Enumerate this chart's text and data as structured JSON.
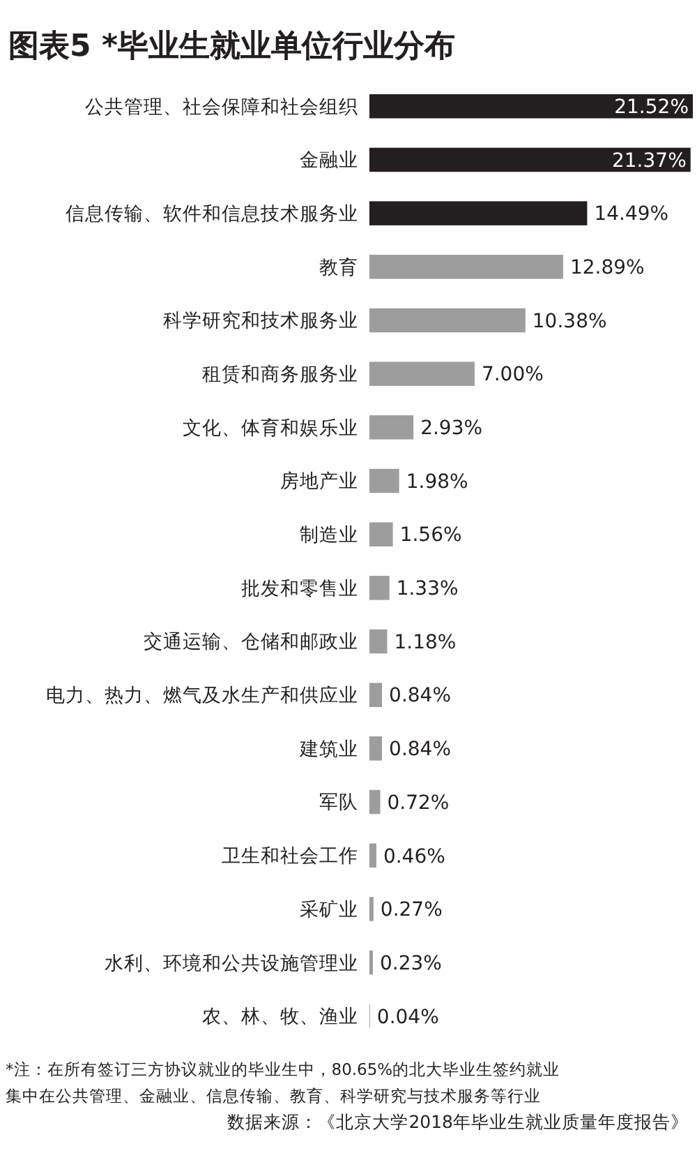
{
  "chart_data": {
    "type": "bar",
    "orientation": "horizontal",
    "title": "图表5 *毕业生就业单位行业分布",
    "categories": [
      "公共管理、社会保障和社会组织",
      "金融业",
      "信息传输、软件和信息技术服务业",
      "教育",
      "科学研究和技术服务业",
      "租赁和商务服务业",
      "文化、体育和娱乐业",
      "房地产业",
      "制造业",
      "批发和零售业",
      "交通运输、仓储和邮政业",
      "电力、热力、燃气及水生产和供应业",
      "建筑业",
      "军队",
      "卫生和社会工作",
      "采矿业",
      "水利、环境和公共设施管理业",
      "农、林、牧、渔业"
    ],
    "values": [
      21.52,
      21.37,
      14.49,
      12.89,
      10.38,
      7.0,
      2.93,
      1.98,
      1.56,
      1.33,
      1.18,
      0.84,
      0.84,
      0.72,
      0.46,
      0.27,
      0.23,
      0.04
    ],
    "value_labels": [
      "21.52%",
      "21.37%",
      "14.49%",
      "12.89%",
      "10.38%",
      "7.00%",
      "2.93%",
      "1.98%",
      "1.56%",
      "1.33%",
      "1.18%",
      "0.84%",
      "0.84%",
      "0.72%",
      "0.46%",
      "0.27%",
      "0.23%",
      "0.04%"
    ],
    "colors": [
      "#231f20",
      "#231f20",
      "#231f20",
      "#9d9d9d",
      "#9d9d9d",
      "#9d9d9d",
      "#9d9d9d",
      "#9d9d9d",
      "#9d9d9d",
      "#9d9d9d",
      "#9d9d9d",
      "#9d9d9d",
      "#9d9d9d",
      "#9d9d9d",
      "#9d9d9d",
      "#9d9d9d",
      "#9d9d9d",
      "#9d9d9d"
    ],
    "annotations": [
      "*注：在所有签订三方协议就业的毕业生中，80.65%的北大毕业生签约就业",
      "集中在公共管理、金融业、信息传输、教育、科学研究与技术服务等行业",
      "数据来源：《北京大学2018年毕业生就业质量年度报告》"
    ]
  }
}
